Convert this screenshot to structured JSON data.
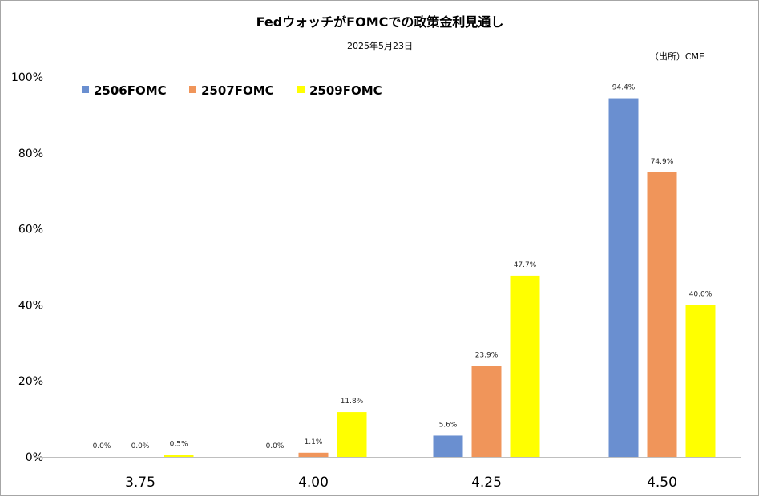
{
  "chart_data": {
    "type": "bar",
    "title": "FedウォッチがFOMCでの政策金利見通し",
    "subtitle": "2025年5月23日",
    "source": "（出所）CME",
    "categories": [
      "3.75",
      "4.00",
      "4.25",
      "4.50"
    ],
    "series": [
      {
        "name": "2506FOMC",
        "color": "#6a8fd0",
        "values": [
          0.0,
          0.0,
          5.6,
          94.4
        ],
        "labels": [
          "0.0%",
          "0.0%",
          "5.6%",
          "94.4%"
        ]
      },
      {
        "name": "2507FOMC",
        "color": "#f0955a",
        "values": [
          0.0,
          1.1,
          23.9,
          74.9
        ],
        "labels": [
          "0.0%",
          "1.1%",
          "23.9%",
          "74.9%"
        ]
      },
      {
        "name": "2509FOMC",
        "color": "#ffff00",
        "values": [
          0.5,
          11.8,
          47.7,
          40.0
        ],
        "labels": [
          "0.5%",
          "11.8%",
          "47.7%",
          "40.0%"
        ]
      }
    ],
    "yticks": [
      "0%",
      "20%",
      "40%",
      "60%",
      "80%",
      "100%"
    ],
    "ylim": [
      0,
      100
    ],
    "grid": false,
    "legend_position": "top-left"
  }
}
